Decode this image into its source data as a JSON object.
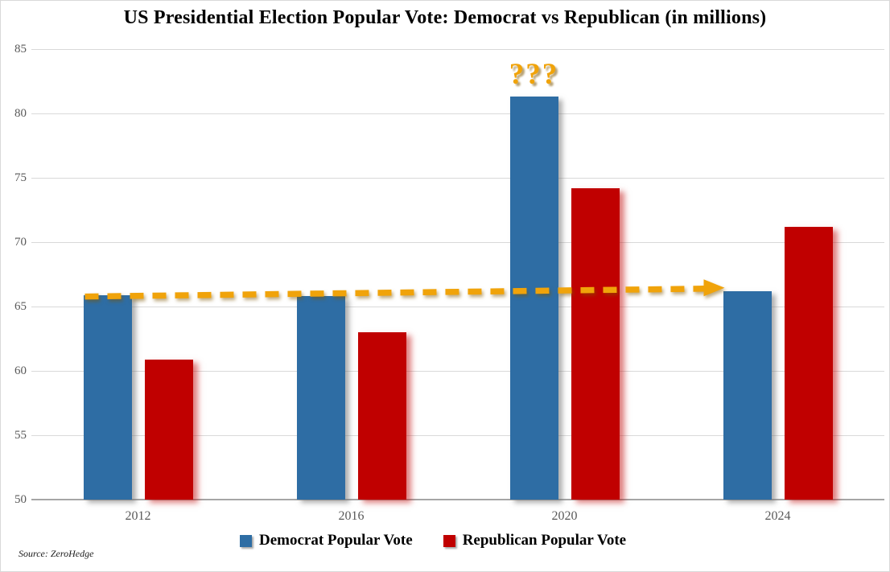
{
  "figure": {
    "title": "US Presidential Election Popular Vote: Democrat vs Republican (in millions)",
    "source_note": "Source: ZeroHedge"
  },
  "annotation": {
    "question_marks": "???"
  },
  "legend": {
    "items": [
      {
        "label": "Democrat Popular Vote",
        "color": "#2e6da4"
      },
      {
        "label": "Republican Popular Vote",
        "color": "#c00000"
      }
    ]
  },
  "colors": {
    "democrat": "#2e6da4",
    "republican": "#c00000",
    "arrow": "#f0a30a",
    "gridline": "#d9d9d9",
    "axis_line": "#a6a6a6",
    "tick_label": "#595959"
  },
  "chart_data": {
    "type": "bar",
    "title": "US Presidential Election Popular Vote: Democrat vs Republican (in millions)",
    "categories": [
      "2012",
      "2016",
      "2020",
      "2024"
    ],
    "series": [
      {
        "name": "Democrat Popular Vote",
        "color": "#2e6da4",
        "values": [
          65.9,
          65.8,
          81.3,
          66.2
        ]
      },
      {
        "name": "Republican Popular Vote",
        "color": "#c00000",
        "values": [
          60.9,
          63.0,
          74.2,
          71.2
        ]
      }
    ],
    "xlabel": "",
    "ylabel": "",
    "ylim": [
      50,
      85
    ],
    "yticks": [
      50,
      55,
      60,
      65,
      70,
      75,
      80,
      85
    ],
    "grid": true,
    "legend_position": "bottom",
    "annotations": [
      {
        "type": "text",
        "text": "???",
        "color": "#f0a30a",
        "anchor": "above 2020 Democrat bar"
      },
      {
        "type": "dashed-arrow",
        "color": "#f0a30a",
        "from": "top of 2012 Democrat bar (~65.9)",
        "to": "top of 2024 Democrat bar (~66.2)",
        "note": "Democrat vote roughly flat 2012-2024 except the 2020 spike"
      }
    ]
  }
}
